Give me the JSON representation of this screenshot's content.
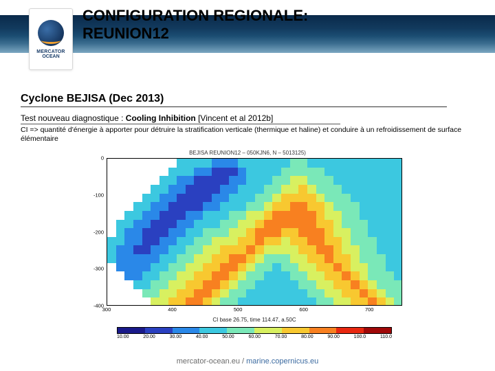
{
  "header": {
    "title_line1": "CONFIGURATION REGIONALE:",
    "title_line2": "REUNION12",
    "band_gradient": [
      "#0a2a4a",
      "#123a5e",
      "#1b4d72",
      "#3b6d8f",
      "#7ba7c1"
    ]
  },
  "logo": {
    "text1": "MERCATOR",
    "text2": "OCEAN",
    "globe_colors": [
      "#3a6ea8",
      "#1b3e6a",
      "#0b2342"
    ],
    "swoosh_color": "#f0a030"
  },
  "section": {
    "title": "Cyclone BEJISA (Dec 2013)",
    "subtitle_prefix": "Test nouveau diagnostique : ",
    "subtitle_bold": "Cooling Inhibition",
    "subtitle_ref": " [Vincent et al 2012b]",
    "description": "CI => quantité d'énergie à apporter pour détruire la stratification verticale (thermique et haline) et conduire à un refroidissement de surface élémentaire"
  },
  "chart": {
    "type": "heatmap",
    "title": "BEJISA REUNION12 – 050KJN6, N – 5013125)",
    "caption": "CI base 26.75, time 114.47, a.50C",
    "x": {
      "lim": [
        300,
        750
      ],
      "ticks": [
        300,
        400,
        500,
        600,
        700
      ],
      "ntick": 5
    },
    "y": {
      "lim": [
        -400,
        0
      ],
      "ticks": [
        -400,
        -300,
        -200,
        -100,
        0
      ],
      "labels": [
        "-400",
        "-300",
        "-200",
        "-100",
        "0"
      ]
    },
    "grid_nx": 34,
    "grid_ny": 17,
    "land_color": "#ffffff",
    "background_color": "#ffffff",
    "border_color": "#000000",
    "label_fontsize": 7.5,
    "title_fontsize": 8,
    "data_rows": [
      [
        null,
        null,
        null,
        null,
        null,
        null,
        null,
        null,
        4,
        4,
        4,
        4,
        3,
        3,
        3,
        4,
        4,
        4,
        4,
        4,
        4,
        5,
        5,
        4,
        4,
        4,
        4,
        4,
        4,
        4,
        4,
        4,
        4,
        4
      ],
      [
        null,
        null,
        null,
        null,
        null,
        null,
        null,
        4,
        4,
        4,
        3,
        3,
        2,
        2,
        2,
        3,
        4,
        4,
        4,
        4,
        5,
        5,
        5,
        5,
        5,
        4,
        4,
        4,
        4,
        4,
        4,
        4,
        4,
        4
      ],
      [
        null,
        null,
        null,
        null,
        null,
        null,
        4,
        4,
        3,
        3,
        2,
        2,
        2,
        2,
        3,
        3,
        4,
        4,
        4,
        5,
        5,
        6,
        6,
        5,
        5,
        5,
        4,
        4,
        4,
        4,
        4,
        4,
        4,
        4
      ],
      [
        null,
        null,
        null,
        null,
        null,
        4,
        4,
        3,
        3,
        2,
        2,
        2,
        2,
        3,
        3,
        4,
        4,
        4,
        5,
        5,
        6,
        6,
        7,
        6,
        5,
        5,
        5,
        4,
        4,
        4,
        4,
        4,
        4,
        4
      ],
      [
        null,
        null,
        null,
        null,
        4,
        4,
        3,
        3,
        2,
        2,
        2,
        2,
        3,
        3,
        4,
        4,
        4,
        5,
        5,
        6,
        7,
        7,
        7,
        7,
        6,
        5,
        5,
        5,
        4,
        4,
        4,
        4,
        4,
        4
      ],
      [
        null,
        null,
        null,
        4,
        4,
        3,
        3,
        2,
        2,
        2,
        2,
        3,
        3,
        4,
        4,
        4,
        5,
        5,
        6,
        7,
        7,
        8,
        8,
        7,
        7,
        6,
        5,
        5,
        5,
        4,
        4,
        4,
        4,
        4
      ],
      [
        null,
        null,
        4,
        4,
        3,
        3,
        2,
        2,
        2,
        3,
        3,
        4,
        4,
        4,
        5,
        5,
        6,
        6,
        7,
        8,
        8,
        8,
        8,
        8,
        7,
        6,
        6,
        5,
        5,
        4,
        4,
        4,
        4,
        4
      ],
      [
        null,
        4,
        4,
        3,
        3,
        2,
        2,
        2,
        3,
        3,
        4,
        4,
        4,
        5,
        5,
        6,
        6,
        7,
        8,
        8,
        8,
        8,
        8,
        8,
        7,
        7,
        6,
        5,
        5,
        5,
        4,
        4,
        4,
        4
      ],
      [
        null,
        4,
        3,
        3,
        2,
        2,
        2,
        3,
        3,
        4,
        4,
        5,
        5,
        5,
        6,
        6,
        7,
        8,
        8,
        8,
        7,
        7,
        8,
        8,
        8,
        7,
        6,
        6,
        5,
        5,
        4,
        4,
        4,
        4
      ],
      [
        4,
        4,
        3,
        3,
        2,
        2,
        3,
        3,
        4,
        4,
        5,
        5,
        6,
        6,
        6,
        7,
        7,
        8,
        7,
        7,
        6,
        7,
        7,
        8,
        8,
        7,
        7,
        6,
        5,
        5,
        5,
        4,
        4,
        4
      ],
      [
        4,
        3,
        3,
        2,
        2,
        3,
        3,
        4,
        4,
        5,
        5,
        6,
        6,
        7,
        7,
        7,
        8,
        7,
        6,
        6,
        6,
        6,
        7,
        7,
        8,
        8,
        7,
        6,
        6,
        5,
        5,
        4,
        4,
        4
      ],
      [
        4,
        3,
        3,
        3,
        3,
        3,
        4,
        4,
        5,
        5,
        6,
        6,
        7,
        7,
        8,
        8,
        7,
        6,
        5,
        5,
        5,
        6,
        6,
        7,
        7,
        8,
        7,
        7,
        6,
        5,
        5,
        5,
        4,
        4
      ],
      [
        null,
        3,
        3,
        3,
        3,
        4,
        4,
        5,
        5,
        6,
        6,
        7,
        7,
        8,
        8,
        7,
        6,
        5,
        5,
        4,
        5,
        5,
        6,
        6,
        7,
        7,
        8,
        7,
        6,
        6,
        5,
        5,
        4,
        4
      ],
      [
        null,
        null,
        3,
        3,
        4,
        4,
        5,
        5,
        6,
        6,
        7,
        7,
        8,
        8,
        7,
        6,
        5,
        5,
        4,
        4,
        4,
        5,
        5,
        6,
        6,
        7,
        7,
        8,
        7,
        6,
        5,
        5,
        5,
        4
      ],
      [
        null,
        null,
        null,
        4,
        4,
        5,
        5,
        6,
        6,
        7,
        7,
        8,
        8,
        7,
        6,
        5,
        5,
        4,
        4,
        4,
        4,
        4,
        5,
        5,
        6,
        6,
        7,
        7,
        8,
        7,
        6,
        5,
        5,
        5
      ],
      [
        null,
        null,
        null,
        null,
        5,
        5,
        6,
        6,
        7,
        7,
        8,
        8,
        7,
        6,
        5,
        5,
        4,
        4,
        4,
        4,
        4,
        4,
        4,
        5,
        5,
        6,
        6,
        7,
        7,
        8,
        7,
        6,
        5,
        5
      ],
      [
        null,
        null,
        null,
        null,
        null,
        6,
        6,
        7,
        7,
        8,
        8,
        7,
        6,
        5,
        5,
        4,
        4,
        4,
        4,
        4,
        4,
        4,
        4,
        4,
        5,
        5,
        6,
        6,
        7,
        7,
        8,
        7,
        6,
        5
      ]
    ]
  },
  "colorbar": {
    "colors": [
      "#1a1a8a",
      "#2a40c0",
      "#2a88e8",
      "#3cc8e0",
      "#7ae8b8",
      "#d8f060",
      "#f8c830",
      "#f88020",
      "#e82810",
      "#a00808"
    ],
    "labels": [
      "10.00",
      "20.00",
      "30.00",
      "40.00",
      "50.00",
      "60.00",
      "70.00",
      "80.00",
      "90.00",
      "100.0",
      "110.0"
    ],
    "border_color": "#000000",
    "label_fontsize": 7
  },
  "footer": {
    "site1": "mercator-ocean.eu",
    "site2": "marine.copernicus.eu",
    "separator": "/",
    "text_color": "#6b6b6b",
    "site2_color": "#3b6aa0"
  },
  "typography": {
    "title_fontsize": 22,
    "section_title_fontsize": 16,
    "subtitle_fontsize": 12,
    "desc_fontsize": 10.5,
    "footer_fontsize": 11,
    "font_family": "Arial"
  }
}
